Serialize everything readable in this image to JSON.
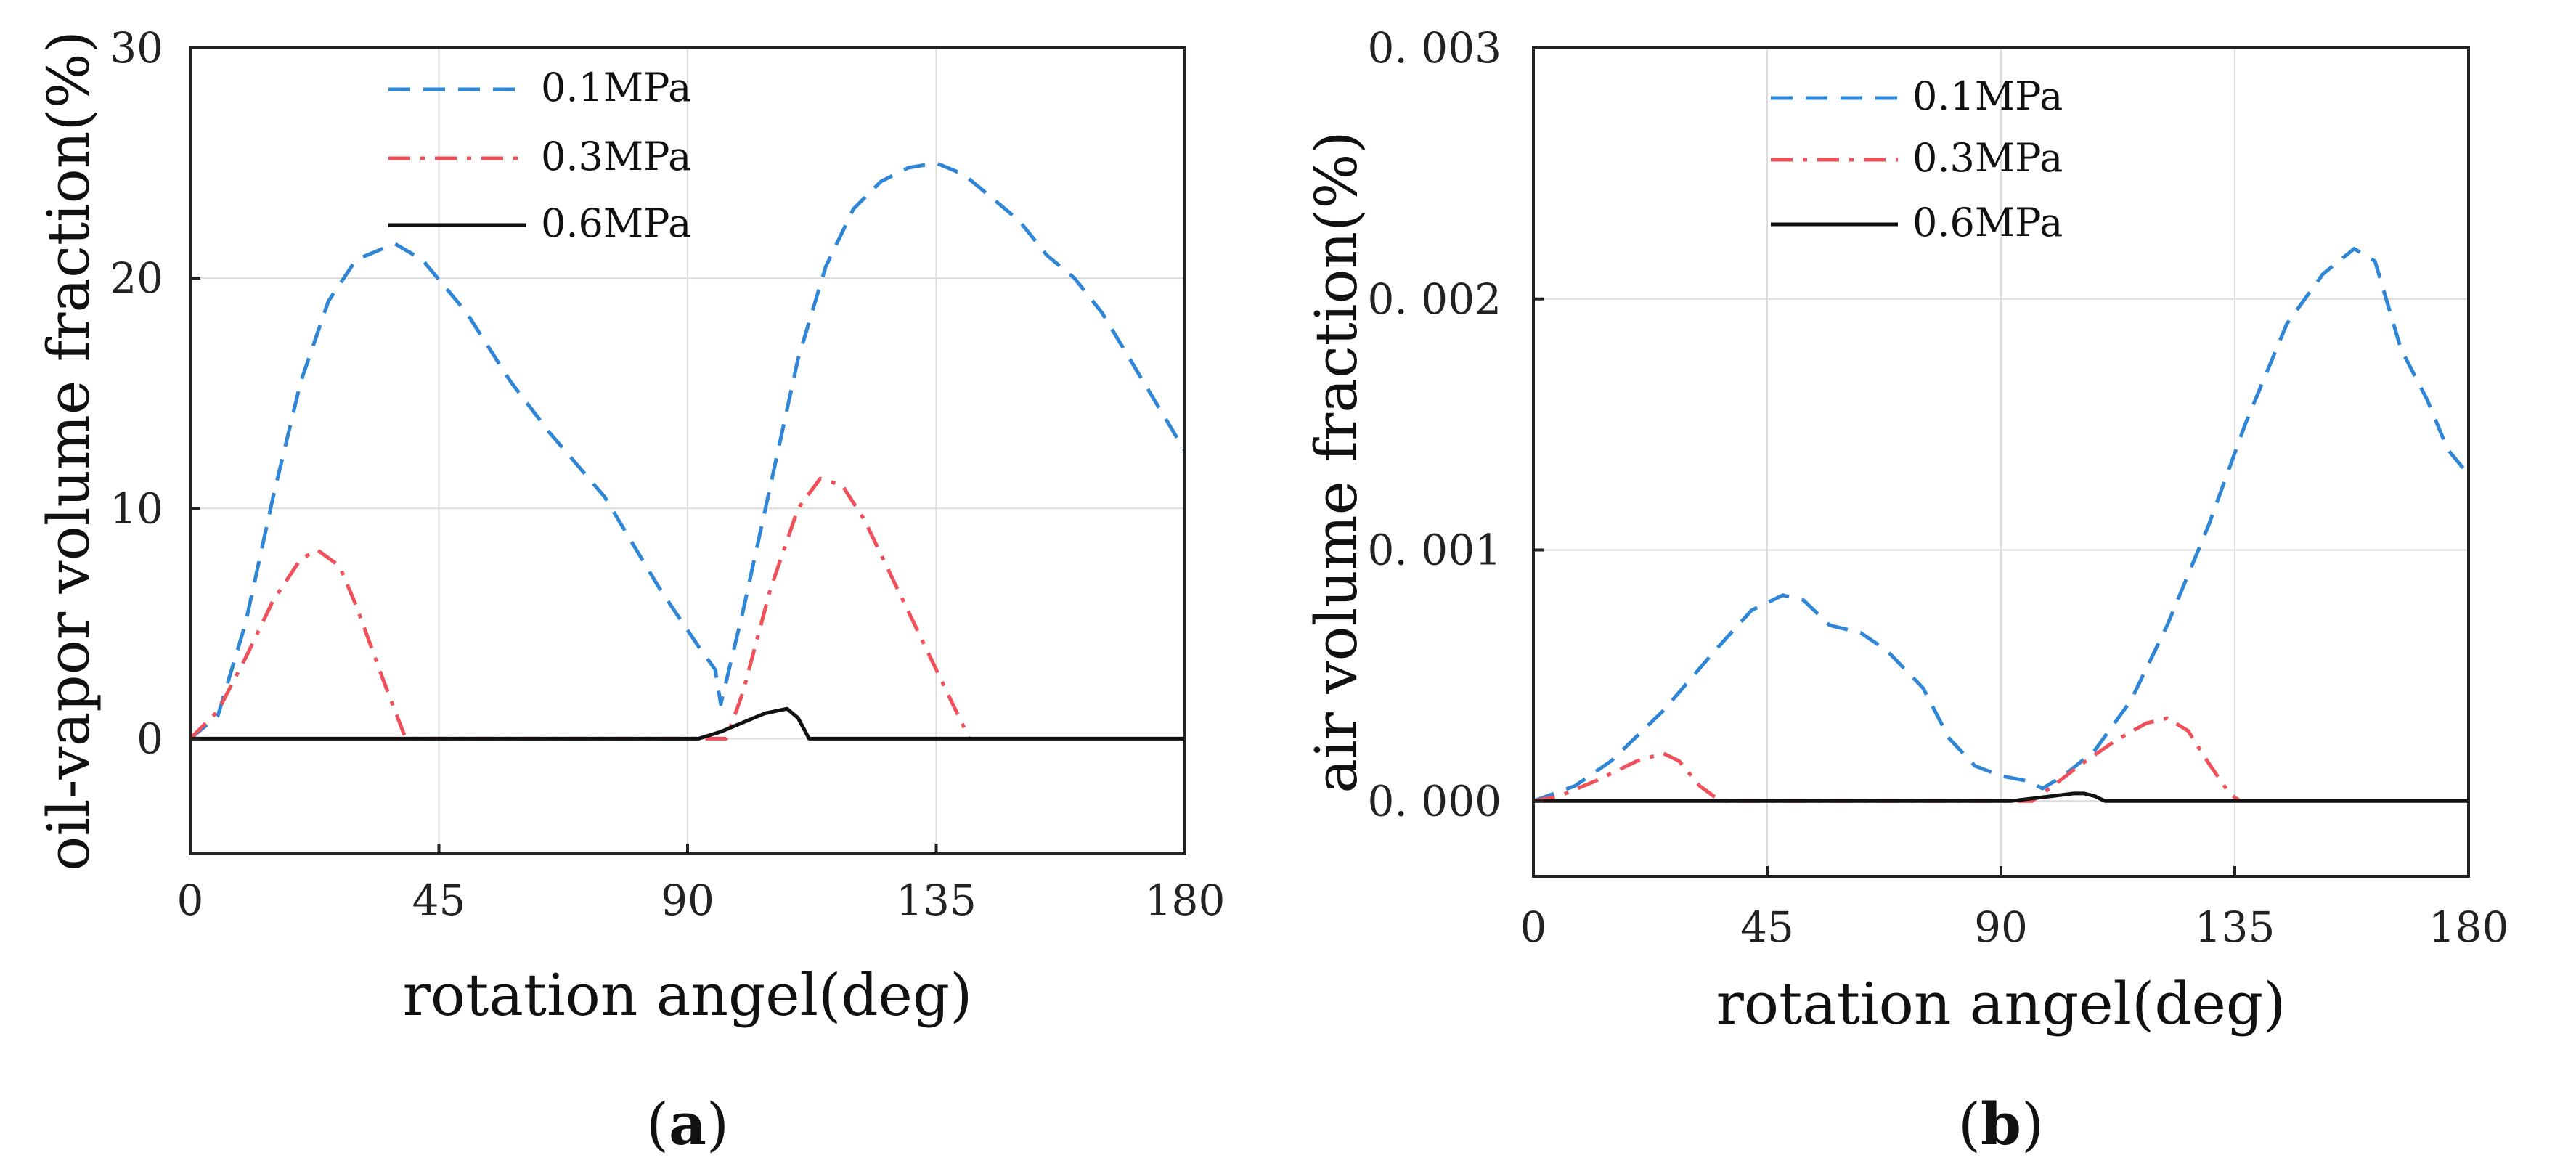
{
  "colors": {
    "s01": "#2f86d6",
    "s03": "#f0505a",
    "s06": "#111111",
    "grid": "#dcdcdc",
    "axis": "#222222"
  },
  "legend_labels": [
    "0.1MPa",
    "0.3MPa",
    "0.6MPa"
  ],
  "chart_data": [
    {
      "type": "line",
      "panel_label_open": "(",
      "panel_label_letter": "a",
      "panel_label_close": ")",
      "xlabel": "rotation angel(deg)",
      "ylabel": "oil-vapor volume fraction(%)",
      "xlim": [
        0,
        180
      ],
      "ylim": [
        -5,
        30
      ],
      "xticks": [
        0,
        45,
        90,
        135,
        180
      ],
      "yticks": [
        0,
        10,
        20,
        30
      ],
      "xtick_labels": [
        "0",
        "45",
        "90",
        "135",
        "180"
      ],
      "ytick_labels": [
        "0",
        "10",
        "20",
        "30"
      ],
      "grid": true,
      "legend_position": "top-center",
      "series": [
        {
          "name": "0.1MPa",
          "style": "dashed",
          "points": [
            [
              0,
              0
            ],
            [
              5,
              1
            ],
            [
              10,
              5
            ],
            [
              15,
              10.5
            ],
            [
              20,
              15.5
            ],
            [
              25,
              19
            ],
            [
              30,
              20.8
            ],
            [
              37,
              21.5
            ],
            [
              42,
              20.8
            ],
            [
              50,
              18.5
            ],
            [
              58,
              15.5
            ],
            [
              65,
              13.3
            ],
            [
              75,
              10.5
            ],
            [
              85,
              6.5
            ],
            [
              92,
              4
            ],
            [
              95,
              3
            ],
            [
              96,
              1.5
            ],
            [
              100,
              5.5
            ],
            [
              105,
              11
            ],
            [
              110,
              16.5
            ],
            [
              115,
              20.5
            ],
            [
              120,
              23
            ],
            [
              125,
              24.2
            ],
            [
              130,
              24.8
            ],
            [
              135,
              25
            ],
            [
              140,
              24.5
            ],
            [
              145,
              23.5
            ],
            [
              150,
              22.5
            ],
            [
              155,
              21
            ],
            [
              160,
              20
            ],
            [
              165,
              18.5
            ],
            [
              170,
              16.5
            ],
            [
              175,
              14.5
            ],
            [
              180,
              12.5
            ]
          ]
        },
        {
          "name": "0.3MPa",
          "style": "dashdot",
          "points": [
            [
              0,
              0
            ],
            [
              5,
              1.2
            ],
            [
              10,
              3.5
            ],
            [
              15,
              6
            ],
            [
              20,
              7.8
            ],
            [
              23,
              8.2
            ],
            [
              27,
              7.5
            ],
            [
              30,
              5.8
            ],
            [
              35,
              2.5
            ],
            [
              39,
              0
            ],
            [
              97,
              0
            ],
            [
              100,
              2
            ],
            [
              105,
              6.5
            ],
            [
              110,
              10
            ],
            [
              114,
              11.3
            ],
            [
              118,
              11
            ],
            [
              122,
              9.5
            ],
            [
              127,
              7
            ],
            [
              132,
              4.5
            ],
            [
              137,
              2
            ],
            [
              141,
              0
            ]
          ]
        },
        {
          "name": "0.6MPa",
          "style": "solid",
          "points": [
            [
              0,
              0
            ],
            [
              92,
              0
            ],
            [
              96,
              0.3
            ],
            [
              100,
              0.7
            ],
            [
              104,
              1.1
            ],
            [
              108,
              1.3
            ],
            [
              110,
              0.9
            ],
            [
              112,
              0
            ],
            [
              180,
              0
            ]
          ]
        }
      ]
    },
    {
      "type": "line",
      "panel_label_open": "(",
      "panel_label_letter": "b",
      "panel_label_close": ")",
      "xlabel": "rotation angel(deg)",
      "ylabel": "air volume fraction(%)",
      "xlim": [
        0,
        180
      ],
      "ylim": [
        -0.0003,
        0.003
      ],
      "xticks": [
        0,
        45,
        90,
        135,
        180
      ],
      "yticks": [
        0,
        0.001,
        0.002,
        0.003
      ],
      "xtick_labels": [
        "0",
        "45",
        "90",
        "135",
        "180"
      ],
      "ytick_labels": [
        "0. 000",
        "0. 001",
        "0. 002",
        "0. 003"
      ],
      "grid": true,
      "legend_position": "top-center",
      "series": [
        {
          "name": "0.1MPa",
          "style": "dashed",
          "points": [
            [
              0,
              0
            ],
            [
              8,
              6e-05
            ],
            [
              15,
              0.00016
            ],
            [
              25,
              0.00036
            ],
            [
              35,
              0.0006
            ],
            [
              42,
              0.00076
            ],
            [
              48,
              0.00082
            ],
            [
              52,
              0.0008
            ],
            [
              57,
              0.0007
            ],
            [
              63,
              0.00067
            ],
            [
              68,
              0.0006
            ],
            [
              75,
              0.00045
            ],
            [
              80,
              0.00025
            ],
            [
              85,
              0.00014
            ],
            [
              90,
              0.0001
            ],
            [
              95,
              8e-05
            ],
            [
              98,
              5e-05
            ],
            [
              102,
              0.0001
            ],
            [
              108,
              0.0002
            ],
            [
              115,
              0.0004
            ],
            [
              122,
              0.0007
            ],
            [
              130,
              0.0011
            ],
            [
              137,
              0.0015
            ],
            [
              145,
              0.0019
            ],
            [
              152,
              0.0021
            ],
            [
              158,
              0.0022
            ],
            [
              162,
              0.00215
            ],
            [
              167,
              0.0018
            ],
            [
              172,
              0.0016
            ],
            [
              176,
              0.0014
            ],
            [
              180,
              0.0013
            ]
          ]
        },
        {
          "name": "0.3MPa",
          "style": "dashdot",
          "points": [
            [
              0,
              0
            ],
            [
              5,
              2e-05
            ],
            [
              12,
              8e-05
            ],
            [
              20,
              0.00016
            ],
            [
              25,
              0.00019
            ],
            [
              28,
              0.00016
            ],
            [
              32,
              6e-05
            ],
            [
              36,
              0
            ],
            [
              96,
              0
            ],
            [
              100,
              6e-05
            ],
            [
              105,
              0.00014
            ],
            [
              112,
              0.00024
            ],
            [
              118,
              0.00031
            ],
            [
              122,
              0.00033
            ],
            [
              126,
              0.00028
            ],
            [
              130,
              0.00015
            ],
            [
              134,
              3e-05
            ],
            [
              136,
              0
            ]
          ]
        },
        {
          "name": "0.6MPa",
          "style": "solid",
          "points": [
            [
              0,
              0
            ],
            [
              92,
              0
            ],
            [
              96,
              1e-05
            ],
            [
              100,
              2e-05
            ],
            [
              104,
              3e-05
            ],
            [
              106,
              3e-05
            ],
            [
              108,
              2e-05
            ],
            [
              110,
              0
            ],
            [
              180,
              0
            ]
          ]
        }
      ]
    }
  ]
}
